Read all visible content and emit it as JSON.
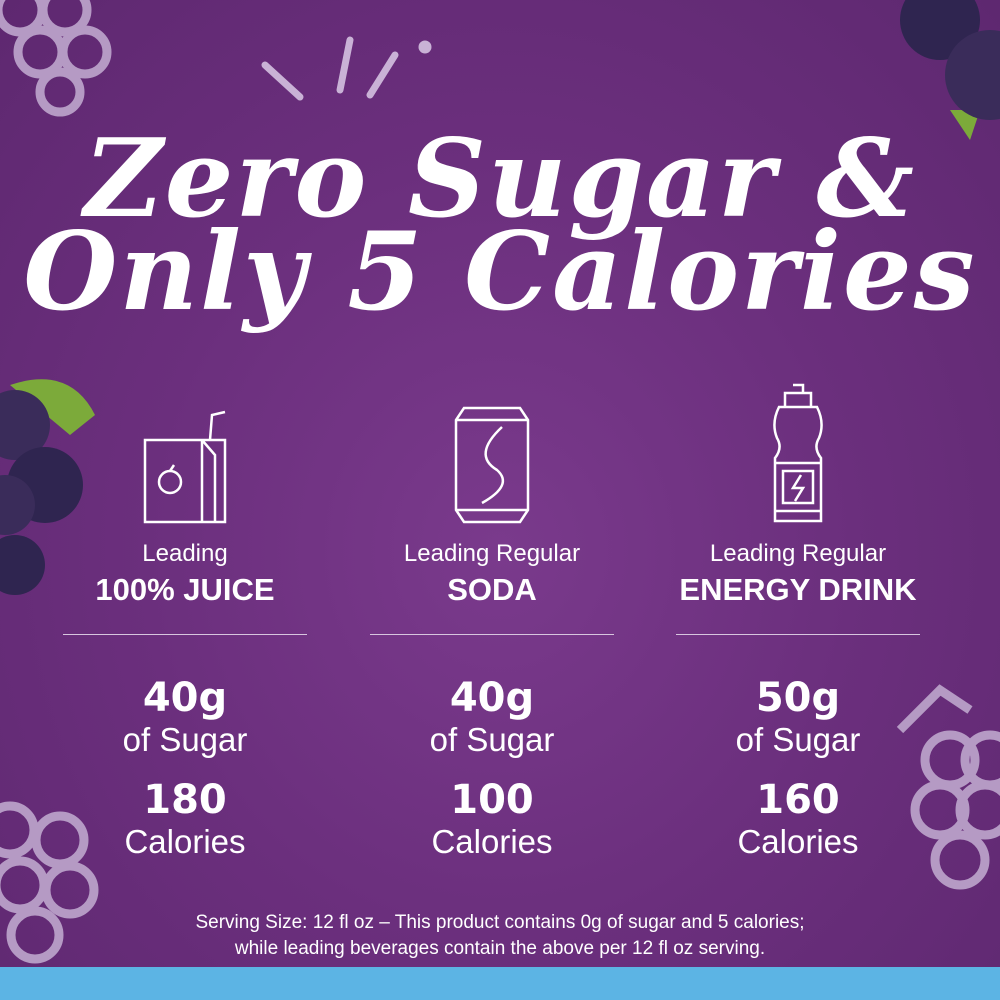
{
  "headline": {
    "line1": "Zero Sugar &",
    "line2": "Only 5 Calories"
  },
  "columns": [
    {
      "icon": "juice-box-icon",
      "lead": "Leading",
      "category": "100% JUICE",
      "sugar": "40g",
      "sugar_unit": "of Sugar",
      "calories": "180",
      "calories_unit": "Calories"
    },
    {
      "icon": "soda-can-icon",
      "lead": "Leading Regular",
      "category": "SODA",
      "sugar": "40g",
      "sugar_unit": "of Sugar",
      "calories": "100",
      "calories_unit": "Calories"
    },
    {
      "icon": "energy-drink-bottle-icon",
      "lead": "Leading Regular",
      "category": "ENERGY DRINK",
      "sugar": "50g",
      "sugar_unit": "of Sugar",
      "calories": "160",
      "calories_unit": "Calories"
    }
  ],
  "footnote": {
    "line1": "Serving Size: 12 fl oz – This product contains 0g of sugar and 5 calories;",
    "line2": "while leading beverages contain the above per 12 fl oz serving."
  },
  "colors": {
    "background": "#6b2f7d",
    "band": "#5cb4e4",
    "text": "#ffffff",
    "grape_outline": "#b59ac4"
  }
}
